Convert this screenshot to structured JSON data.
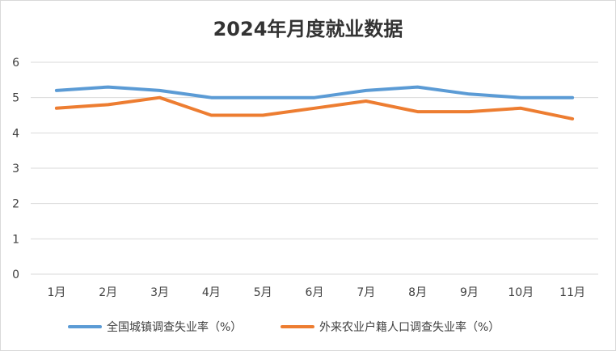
{
  "chart_data": {
    "type": "line",
    "title": "2024年月度就业数据",
    "categories": [
      "1月",
      "2月",
      "3月",
      "4月",
      "5月",
      "6月",
      "7月",
      "8月",
      "9月",
      "10月",
      "11月"
    ],
    "series": [
      {
        "name": "全国城镇调查失业率（%）",
        "color": "#5b9bd5",
        "values": [
          5.2,
          5.3,
          5.2,
          5.0,
          5.0,
          5.0,
          5.2,
          5.3,
          5.1,
          5.0,
          5.0
        ]
      },
      {
        "name": "外来农业户籍人口调查失业率（%）",
        "color": "#ed7d31",
        "values": [
          4.7,
          4.8,
          5.0,
          4.5,
          4.5,
          4.7,
          4.9,
          4.6,
          4.6,
          4.7,
          4.4
        ]
      }
    ],
    "y_ticks": [
      "0",
      "1",
      "2",
      "3",
      "4",
      "5",
      "6"
    ],
    "ylim": [
      0,
      6
    ],
    "grid": true,
    "gridline_color": "#d9d9d9",
    "legend_position": "bottom"
  }
}
